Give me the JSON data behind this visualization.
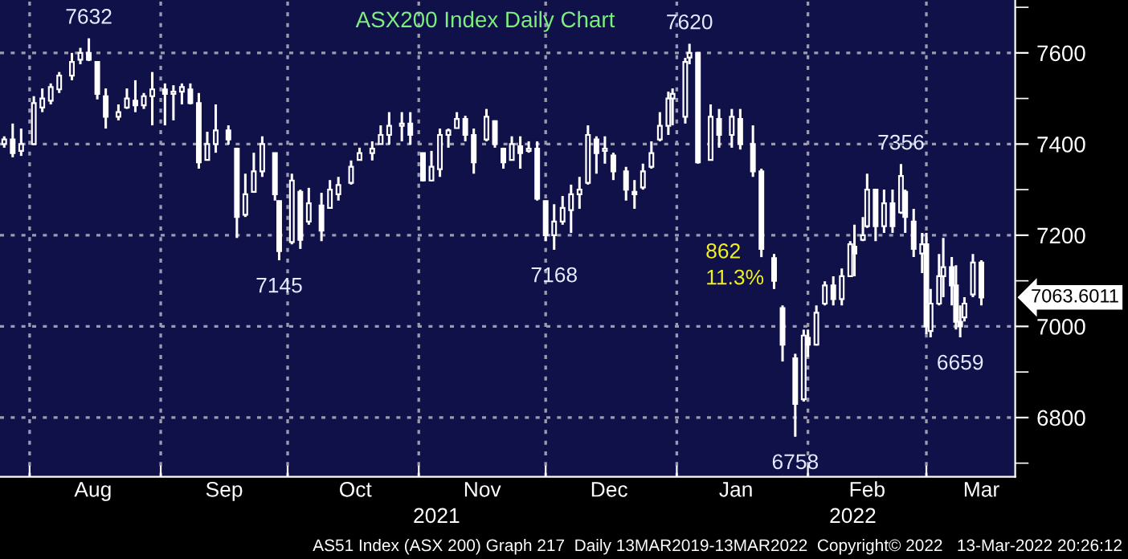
{
  "chart_data": {
    "type": "candlestick",
    "title": "ASX200 Index Daily Chart",
    "x": [
      "2021-07-26",
      "2021-07-28",
      "2021-07-30",
      "2021-08-02",
      "2021-08-04",
      "2021-08-06",
      "2021-08-08",
      "2021-08-11",
      "2021-08-13",
      "2021-08-15",
      "2021-08-17",
      "2021-08-19",
      "2021-08-22",
      "2021-08-24",
      "2021-08-26",
      "2021-08-28",
      "2021-08-30",
      "2021-09-02",
      "2021-09-04",
      "2021-09-06",
      "2021-09-08",
      "2021-09-10",
      "2021-09-12",
      "2021-09-14",
      "2021-09-17",
      "2021-09-19",
      "2021-09-21",
      "2021-09-23",
      "2021-09-25",
      "2021-09-28",
      "2021-09-29",
      "2021-10-02",
      "2021-10-04",
      "2021-10-06",
      "2021-10-09",
      "2021-10-11",
      "2021-10-13",
      "2021-10-16",
      "2021-10-18",
      "2021-10-21",
      "2021-10-23",
      "2021-10-25",
      "2021-10-28",
      "2021-10-30",
      "2021-11-02",
      "2021-11-04",
      "2021-11-06",
      "2021-11-08",
      "2021-11-10",
      "2021-11-12",
      "2021-11-14",
      "2021-11-17",
      "2021-11-19",
      "2021-11-21",
      "2021-11-23",
      "2021-11-25",
      "2021-11-27",
      "2021-11-29",
      "2021-12-01",
      "2021-12-03",
      "2021-12-05",
      "2021-12-07",
      "2021-12-09",
      "2021-12-11",
      "2021-12-13",
      "2021-12-15",
      "2021-12-17",
      "2021-12-20",
      "2021-12-22",
      "2021-12-24",
      "2021-12-26",
      "2021-12-28",
      "2021-12-30",
      "2021-12-31",
      "2022-01-03",
      "2022-01-04",
      "2022-01-06",
      "2022-01-09",
      "2022-01-11",
      "2022-01-14",
      "2022-01-16",
      "2022-01-19",
      "2022-01-21",
      "2022-01-24",
      "2022-01-26",
      "2022-01-29",
      "2022-01-31",
      "2022-02-01",
      "2022-02-03",
      "2022-02-05",
      "2022-02-07",
      "2022-02-09",
      "2022-02-11",
      "2022-02-12",
      "2022-02-14",
      "2022-02-15",
      "2022-02-17",
      "2022-02-19",
      "2022-02-21",
      "2022-02-23",
      "2022-02-24",
      "2022-02-26",
      "2022-02-28",
      "2022-03-01",
      "2022-03-02",
      "2022-03-04",
      "2022-03-05",
      "2022-03-07",
      "2022-03-08",
      "2022-03-09",
      "2022-03-10",
      "2022-03-12",
      "2022-03-14"
    ],
    "ohlc": [
      [
        7400,
        7417,
        7392,
        7410
      ],
      [
        7410,
        7445,
        7371,
        7380
      ],
      [
        7385,
        7434,
        7374,
        7400
      ],
      [
        7400,
        7505,
        7399,
        7490
      ],
      [
        7480,
        7522,
        7470,
        7500
      ],
      [
        7495,
        7533,
        7487,
        7525
      ],
      [
        7520,
        7558,
        7512,
        7550
      ],
      [
        7550,
        7600,
        7540,
        7580
      ],
      [
        7585,
        7611,
        7575,
        7600
      ],
      [
        7600,
        7632,
        7582,
        7585
      ],
      [
        7580,
        7582,
        7498,
        7510
      ],
      [
        7505,
        7522,
        7434,
        7460
      ],
      [
        7460,
        7487,
        7452,
        7470
      ],
      [
        7480,
        7522,
        7477,
        7500
      ],
      [
        7495,
        7540,
        7470,
        7485
      ],
      [
        7485,
        7512,
        7477,
        7505
      ],
      [
        7505,
        7558,
        7441,
        7520
      ],
      [
        7520,
        7533,
        7441,
        7510
      ],
      [
        7510,
        7529,
        7452,
        7515
      ],
      [
        7515,
        7533,
        7487,
        7525
      ],
      [
        7520,
        7533,
        7487,
        7490
      ],
      [
        7490,
        7512,
        7346,
        7360
      ],
      [
        7365,
        7427,
        7364,
        7400
      ],
      [
        7400,
        7487,
        7381,
        7430
      ],
      [
        7430,
        7441,
        7399,
        7410
      ],
      [
        7390,
        7392,
        7194,
        7240
      ],
      [
        7245,
        7335,
        7240,
        7290
      ],
      [
        7295,
        7381,
        7293,
        7340
      ],
      [
        7340,
        7417,
        7328,
        7400
      ],
      [
        7380,
        7381,
        7276,
        7290
      ],
      [
        7275,
        7276,
        7145,
        7165
      ],
      [
        7185,
        7335,
        7180,
        7320
      ],
      [
        7295,
        7300,
        7170,
        7190
      ],
      [
        7230,
        7304,
        7223,
        7270
      ],
      [
        7265,
        7293,
        7187,
        7210
      ],
      [
        7260,
        7321,
        7258,
        7300
      ],
      [
        7290,
        7328,
        7276,
        7310
      ],
      [
        7315,
        7364,
        7311,
        7350
      ],
      [
        7365,
        7392,
        7364,
        7380
      ],
      [
        7380,
        7406,
        7364,
        7390
      ],
      [
        7400,
        7441,
        7399,
        7420
      ],
      [
        7420,
        7470,
        7399,
        7440
      ],
      [
        7440,
        7470,
        7406,
        7445
      ],
      [
        7445,
        7470,
        7399,
        7420
      ],
      [
        7380,
        7381,
        7318,
        7320
      ],
      [
        7320,
        7385,
        7318,
        7350
      ],
      [
        7345,
        7434,
        7328,
        7420
      ],
      [
        7420,
        7434,
        7392,
        7430
      ],
      [
        7435,
        7470,
        7434,
        7455
      ],
      [
        7455,
        7462,
        7406,
        7420
      ],
      [
        7420,
        7434,
        7335,
        7360
      ],
      [
        7410,
        7477,
        7406,
        7460
      ],
      [
        7450,
        7452,
        7392,
        7400
      ],
      [
        7390,
        7392,
        7346,
        7360
      ],
      [
        7365,
        7417,
        7364,
        7400
      ],
      [
        7395,
        7417,
        7346,
        7380
      ],
      [
        7385,
        7406,
        7381,
        7390
      ],
      [
        7390,
        7406,
        7276,
        7280
      ],
      [
        7275,
        7276,
        7187,
        7200
      ],
      [
        7200,
        7268,
        7168,
        7230
      ],
      [
        7230,
        7286,
        7223,
        7260
      ],
      [
        7255,
        7311,
        7205,
        7290
      ],
      [
        7290,
        7328,
        7258,
        7300
      ],
      [
        7315,
        7441,
        7311,
        7420
      ],
      [
        7410,
        7417,
        7335,
        7380
      ],
      [
        7385,
        7417,
        7357,
        7390
      ],
      [
        7375,
        7381,
        7321,
        7340
      ],
      [
        7340,
        7350,
        7276,
        7300
      ],
      [
        7295,
        7321,
        7258,
        7290
      ],
      [
        7305,
        7357,
        7300,
        7340
      ],
      [
        7350,
        7406,
        7346,
        7380
      ],
      [
        7410,
        7470,
        7406,
        7440
      ],
      [
        7440,
        7515,
        7420,
        7500
      ],
      [
        7500,
        7522,
        7441,
        7510
      ],
      [
        7460,
        7589,
        7445,
        7580
      ],
      [
        7590,
        7620,
        7575,
        7600
      ],
      [
        7600,
        7600,
        7357,
        7360
      ],
      [
        7365,
        7487,
        7364,
        7460
      ],
      [
        7455,
        7477,
        7392,
        7420
      ],
      [
        7420,
        7477,
        7392,
        7460
      ],
      [
        7455,
        7477,
        7388,
        7400
      ],
      [
        7400,
        7441,
        7328,
        7340
      ],
      [
        7340,
        7346,
        7152,
        7170
      ],
      [
        7150,
        7159,
        7082,
        7100
      ],
      [
        7040,
        7046,
        6923,
        6960
      ],
      [
        6930,
        6940,
        6758,
        6830
      ],
      [
        6840,
        6993,
        6835,
        6980
      ],
      [
        6975,
        6993,
        6933,
        6960
      ],
      [
        6960,
        7046,
        6958,
        7030
      ],
      [
        7050,
        7099,
        7046,
        7090
      ],
      [
        7090,
        7110,
        7046,
        7060
      ],
      [
        7060,
        7127,
        7046,
        7110
      ],
      [
        7110,
        7187,
        7110,
        7180
      ],
      [
        7175,
        7223,
        7110,
        7160
      ],
      [
        7190,
        7240,
        7187,
        7200
      ],
      [
        7220,
        7335,
        7216,
        7300
      ],
      [
        7300,
        7300,
        7187,
        7220
      ],
      [
        7220,
        7300,
        7205,
        7270
      ],
      [
        7270,
        7300,
        7205,
        7220
      ],
      [
        7250,
        7356,
        7247,
        7330
      ],
      [
        7295,
        7300,
        7205,
        7240
      ],
      [
        7230,
        7258,
        7152,
        7170
      ],
      [
        7160,
        7205,
        7117,
        7180
      ],
      [
        7180,
        7205,
        6983,
        7000
      ],
      [
        6990,
        7082,
        6976,
        7050
      ],
      [
        7050,
        7159,
        7046,
        7110
      ],
      [
        7110,
        7194,
        7064,
        7130
      ],
      [
        7130,
        7152,
        7046,
        7090
      ],
      [
        7090,
        7134,
        6993,
        7010
      ],
      [
        7010,
        7046,
        6976,
        7000
      ],
      [
        7020,
        7064,
        7011,
        7050
      ],
      [
        7070,
        7159,
        7064,
        7140
      ],
      [
        7140,
        7145,
        7046,
        7063.6011
      ]
    ],
    "color": "#ffffff",
    "xlim": [
      "2021-07-25",
      "2022-03-22"
    ],
    "xticks": [
      {
        "value": "2021-08-01",
        "label": null
      },
      {
        "value": "2021-08-16",
        "label": "Aug"
      },
      {
        "value": "2021-09-01",
        "label": null
      },
      {
        "value": "2021-09-16",
        "label": "Sep"
      },
      {
        "value": "2021-10-01",
        "label": null
      },
      {
        "value": "2021-10-17",
        "label": "Oct"
      },
      {
        "value": "2021-11-01",
        "label": null
      },
      {
        "value": "2021-11-16",
        "label": "Nov"
      },
      {
        "value": "2021-12-01",
        "label": null
      },
      {
        "value": "2021-12-16",
        "label": "Dec"
      },
      {
        "value": "2022-01-01",
        "label": null
      },
      {
        "value": "2022-01-15",
        "label": "Jan"
      },
      {
        "value": "2022-02-01",
        "label": null
      },
      {
        "value": "2022-02-15",
        "label": "Feb"
      },
      {
        "value": "2022-03-01",
        "label": null
      },
      {
        "value": "2022-03-14",
        "label": "Mar"
      }
    ],
    "ylim": [
      6670,
      7716
    ],
    "yticks": [
      {
        "value": 6700,
        "label": null
      },
      6800,
      {
        "value": 6900,
        "label": null
      },
      7000,
      {
        "value": 7100,
        "label": null
      },
      7200,
      {
        "value": 7300,
        "label": null
      },
      7400,
      {
        "value": 7500,
        "label": null
      },
      7600,
      {
        "value": 7700,
        "label": null
      }
    ],
    "grid": true,
    "annotations": [
      {
        "text": "7632",
        "x": "2021-08-15",
        "y": 7632
      },
      {
        "text": "7145",
        "x": "2021-09-29",
        "y": 7145
      },
      {
        "text": "7168",
        "x": "2021-12-03",
        "y": 7168
      },
      {
        "text": "7620",
        "x": "2022-01-04",
        "y": 7620
      },
      {
        "text": "6758",
        "x": "2022-01-29",
        "y": 6758
      },
      {
        "text": "7356",
        "x": "2022-02-23",
        "y": 7356
      },
      {
        "text": "6659",
        "x": "2022-03-09",
        "y": 6976
      },
      "7063.6011",
      "862",
      "11.3%",
      "2021",
      "2022",
      "AS51 Index (ASX 200) Graph 217  Daily 13MAR2019-13MAR2022  Copyright© 2022   13-Mar-2022 20:26:12"
    ]
  }
}
